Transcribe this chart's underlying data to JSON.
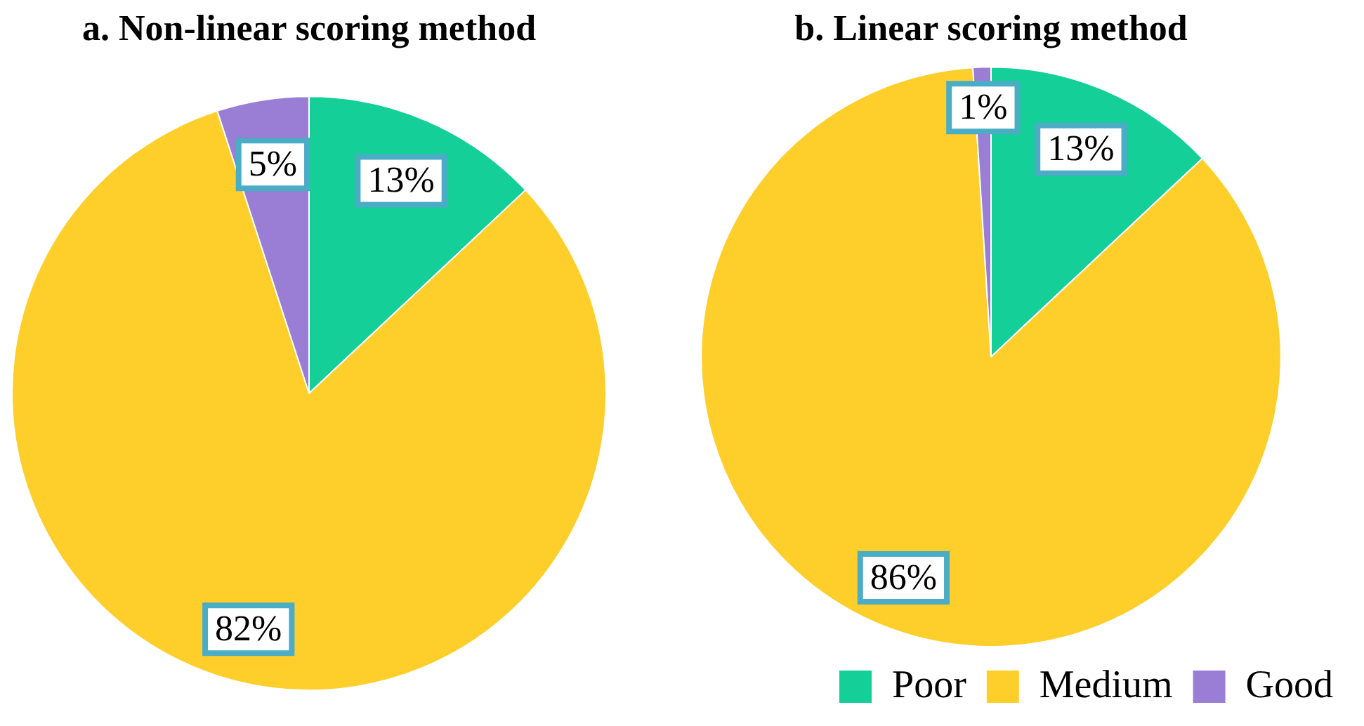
{
  "chart_data": [
    {
      "type": "pie",
      "title": "a. Non-linear scoring method",
      "categories": [
        null,
        null,
        null
      ],
      "values": [
        13,
        82,
        5
      ],
      "colors": [
        "#14cf98",
        "#fecf2a",
        "#9a7ed6"
      ],
      "value_labels": [
        "13%",
        "82%",
        "5%"
      ],
      "legend": false
    },
    {
      "type": "pie",
      "title": "b. Linear scoring method",
      "categories": [
        "Poor",
        "Medium",
        "Good"
      ],
      "values": [
        13,
        86,
        1
      ],
      "colors": [
        "#14cf98",
        "#fecf2a",
        "#9a7ed6"
      ],
      "value_labels": [
        "13%",
        "86%",
        "1%"
      ],
      "legend": "bottom right"
    }
  ]
}
